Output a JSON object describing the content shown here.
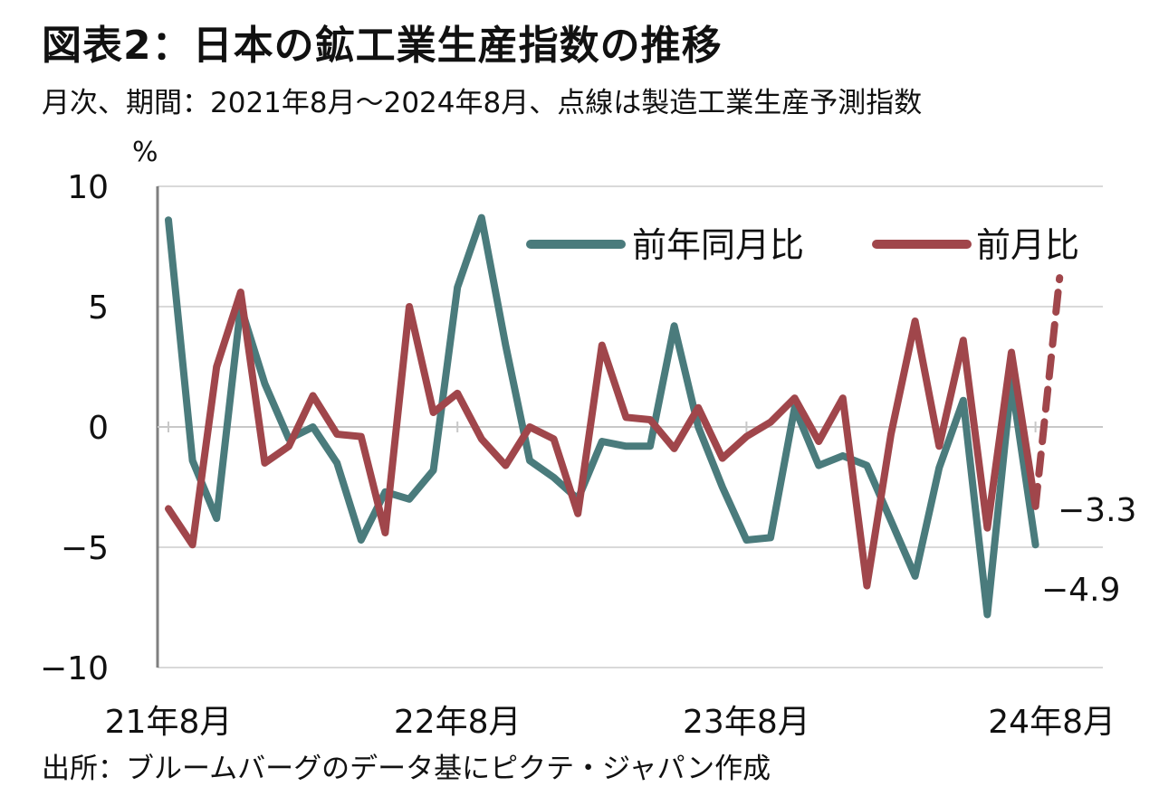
{
  "chart_data": {
    "type": "line",
    "title": "図表2：日本の鉱工業生産指数の推移",
    "subtitle": "月次、期間：2021年8月～2024年8月、点線は製造工業生産予測指数",
    "source": "出所：ブルームバーグのデータ基にピクテ・ジャパン作成",
    "ylabel": "%",
    "ylim": [
      -10,
      10
    ],
    "yticks": [
      "10",
      "5",
      "0",
      "−5",
      "−10"
    ],
    "ytick_values": [
      10,
      5,
      0,
      -5,
      -10
    ],
    "x_tick_labels": [
      "21年8月",
      "22年8月",
      "23年8月",
      "24年8月"
    ],
    "x_tick_positions": [
      0,
      12,
      24,
      36
    ],
    "x_count": 38,
    "grid": true,
    "legend_position": "top-right",
    "series": [
      {
        "name": "前年同月比",
        "color": "#4a7b7c",
        "values": [
          8.6,
          -1.4,
          -3.8,
          5.0,
          1.8,
          -0.5,
          0.0,
          -1.5,
          -4.7,
          -2.7,
          -3.0,
          -1.8,
          5.8,
          8.7,
          3.4,
          -1.4,
          -2.1,
          -3.0,
          -0.6,
          -0.8,
          -0.8,
          4.2,
          0.0,
          -2.5,
          -4.7,
          -4.6,
          0.8,
          -1.6,
          -1.2,
          -1.6,
          -3.9,
          -6.2,
          -1.7,
          1.1,
          -7.8,
          1.9,
          -4.9
        ],
        "end_label": "−4.9"
      },
      {
        "name": "前月比",
        "color": "#a0464b",
        "values": [
          -3.4,
          -4.9,
          2.5,
          5.6,
          -1.5,
          -0.8,
          1.3,
          -0.3,
          -0.4,
          -4.4,
          5.0,
          0.6,
          1.4,
          -0.5,
          -1.6,
          0.0,
          -0.5,
          -3.6,
          3.4,
          0.4,
          0.3,
          -0.9,
          0.8,
          -1.3,
          -0.4,
          0.2,
          1.2,
          -0.6,
          1.2,
          -6.6,
          -0.3,
          4.4,
          -0.8,
          3.6,
          -4.2,
          3.1,
          -3.3
        ],
        "end_label": "−3.3",
        "forecast": {
          "x_from": 36,
          "x_to": 37,
          "values": [
            -3.3,
            6.2
          ]
        }
      }
    ]
  }
}
